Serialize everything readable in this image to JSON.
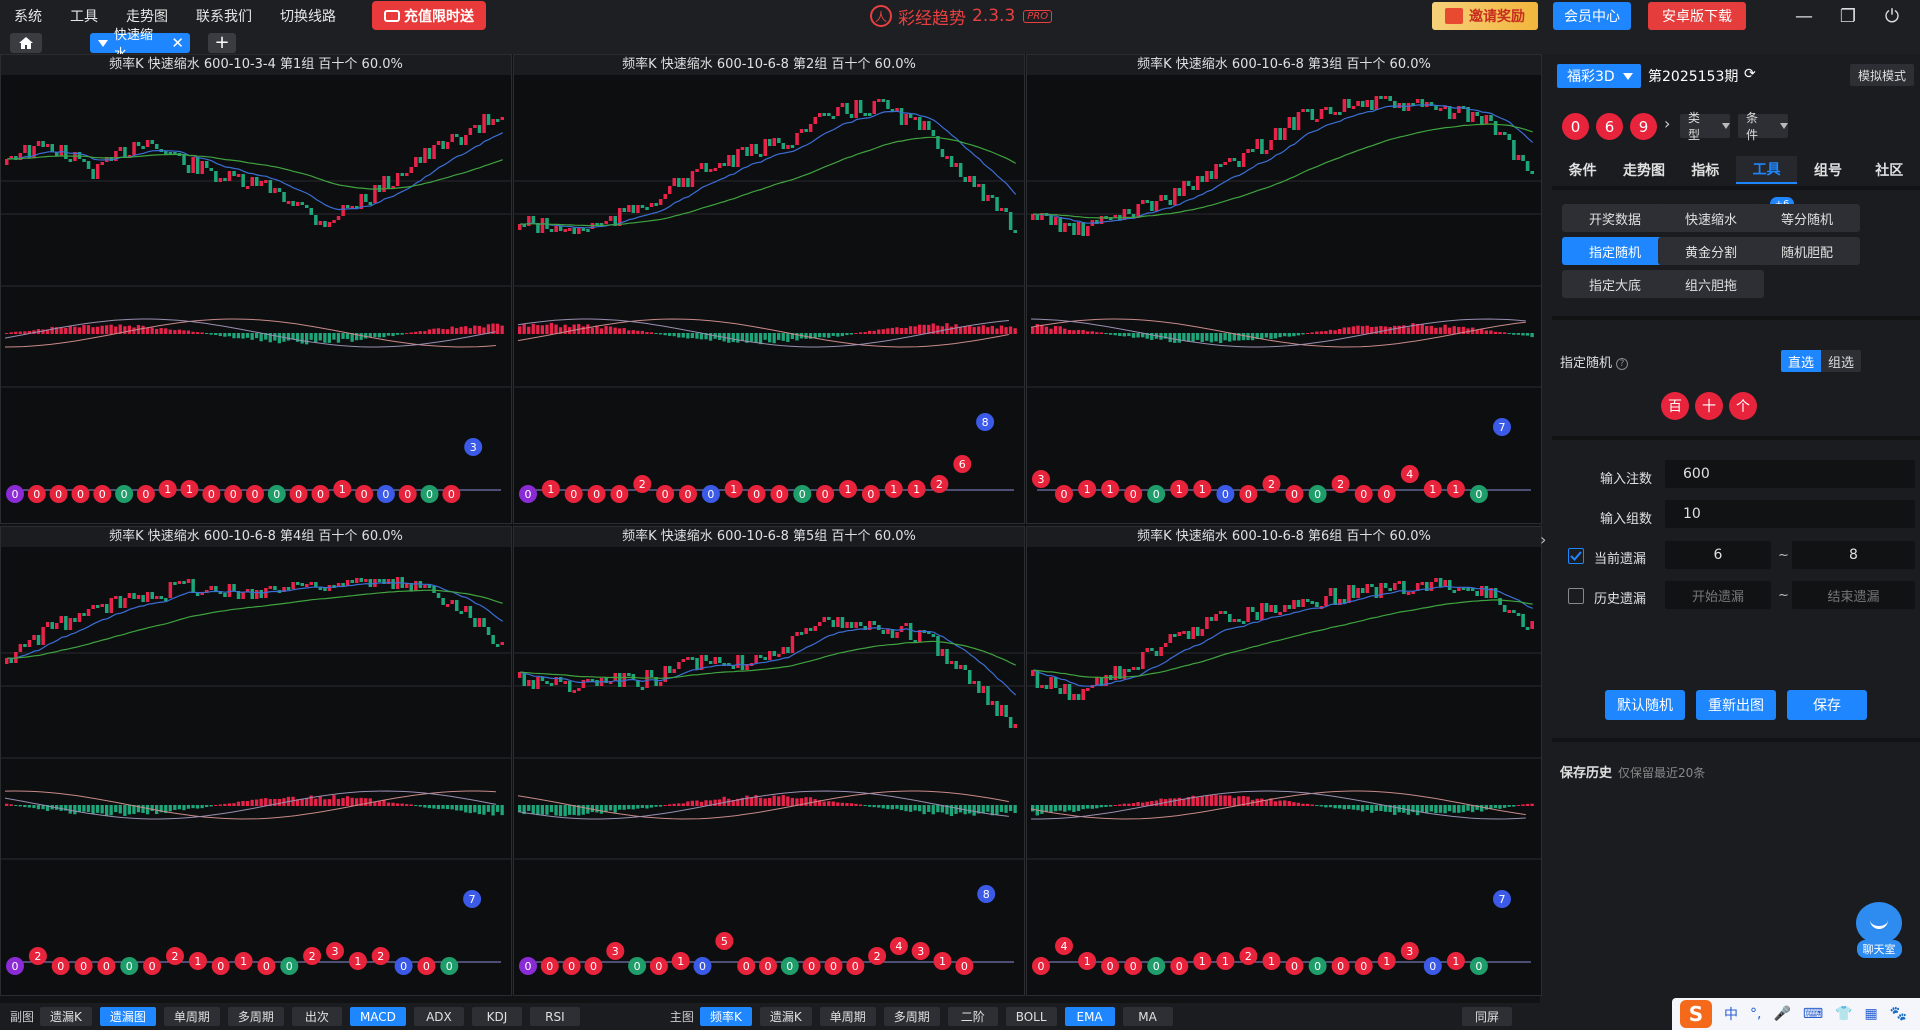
{
  "menu": [
    "系统",
    "工具",
    "走势图",
    "联系我们",
    "切换线路"
  ],
  "promo_label": "充值限时送",
  "brand": {
    "name": "彩经趋势",
    "version": "2.3.3",
    "badge": "PRO"
  },
  "invite_label": "邀请奖励",
  "member_label": "会员中心",
  "android_label": "安卓版下载",
  "window_buttons": {
    "minimize": "—",
    "restore": "❐",
    "power": "⏻"
  },
  "tab": {
    "label": "快速缩水",
    "close": "✕",
    "add": "+"
  },
  "panels": [
    {
      "title": "频率K  快速缩水  600-10-3-4 第1组  百十个  60.0%"
    },
    {
      "title": "频率K  快速缩水  600-10-6-8 第2组  百十个  60.0%"
    },
    {
      "title": "频率K  快速缩水  600-10-6-8 第3组  百十个  60.0%"
    },
    {
      "title": "频率K  快速缩水  600-10-6-8 第4组  百十个  60.0%"
    },
    {
      "title": "频率K  快速缩水  600-10-6-8 第5组  百十个  60.0%"
    },
    {
      "title": "频率K  快速缩水  600-10-6-8 第6组  百十个  60.0%"
    }
  ],
  "bottom": {
    "sub_label": "副图",
    "sub_buttons": [
      {
        "label": "遗漏K",
        "on": false
      },
      {
        "label": "遗漏图",
        "on": true
      },
      {
        "label": "单周期",
        "on": false
      },
      {
        "label": "多周期",
        "on": false
      },
      {
        "label": "出次",
        "on": false
      },
      {
        "label": "MACD",
        "on": true
      },
      {
        "label": "ADX",
        "on": false
      },
      {
        "label": "KDJ",
        "on": false
      },
      {
        "label": "RSI",
        "on": false
      }
    ],
    "main_label": "主图",
    "main_buttons": [
      {
        "label": "频率K",
        "on": true
      },
      {
        "label": "遗漏K",
        "on": false
      },
      {
        "label": "单周期",
        "on": false
      },
      {
        "label": "多周期",
        "on": false
      },
      {
        "label": "二阶",
        "on": false
      },
      {
        "label": "BOLL",
        "on": false
      },
      {
        "label": "EMA",
        "on": true
      },
      {
        "label": "MA",
        "on": false
      }
    ],
    "sync_label": "同屏"
  },
  "right": {
    "lottery": "福彩3D",
    "period": "第2025153期",
    "refresh_icon": "⟳",
    "sim_mode": "模拟模式",
    "balls": [
      "0",
      "6",
      "9"
    ],
    "chevron": "›",
    "type_dd": "类型",
    "cond_dd": "条件",
    "tabs": [
      "条件",
      "走势图",
      "指标",
      "工具",
      "组号",
      "社区"
    ],
    "active_tab": 3,
    "tools": [
      "开奖数据",
      "快速缩水",
      "等分随机",
      "指定随机",
      "黄金分割",
      "随机胆配",
      "指定大底",
      "组六胆拖"
    ],
    "tool_badge": "+6",
    "random_label": "指定随机",
    "help": "?",
    "seg": [
      "直选",
      "组选"
    ],
    "positions": [
      "百",
      "十",
      "个"
    ],
    "input_bets_label": "输入注数",
    "input_bets": "600",
    "input_groups_label": "输入组数",
    "input_groups": "10",
    "cur_miss_label": "当前遗漏",
    "cur_miss_from": "6",
    "cur_miss_to": "8",
    "hist_miss_label": "历史遗漏",
    "hist_from_ph": "开始遗漏",
    "hist_to_ph": "结束遗漏",
    "tilde": "~",
    "actions": [
      "默认随机",
      "重新出图",
      "保存"
    ],
    "save_history": "保存历史",
    "save_history_note": "仅保留最近20条"
  },
  "chat_label": "聊天室",
  "ime": {
    "logo": "S",
    "items": [
      "中",
      "°,",
      "🎤",
      "⌨",
      "👕",
      "▦",
      "🐾"
    ]
  },
  "expand_icon": "›",
  "colors": {
    "accent": "#1e86ff",
    "up": "#e8234a",
    "down": "#1fa57a",
    "ball_red": "#e8233c",
    "ball_blue": "#3c5ae8",
    "ball_green": "#1f9d6a",
    "ball_purple": "#8b2bd6"
  },
  "chart_data": [
    {
      "type": "candlestick",
      "group": 1,
      "last_miss": 3
    },
    {
      "type": "candlestick",
      "group": 2,
      "last_miss": 8
    },
    {
      "type": "candlestick",
      "group": 3,
      "last_miss": 7
    },
    {
      "type": "candlestick",
      "group": 4,
      "last_miss": 7
    },
    {
      "type": "candlestick",
      "group": 5,
      "last_miss": 8
    },
    {
      "type": "candlestick",
      "group": 6,
      "last_miss": 7
    }
  ]
}
